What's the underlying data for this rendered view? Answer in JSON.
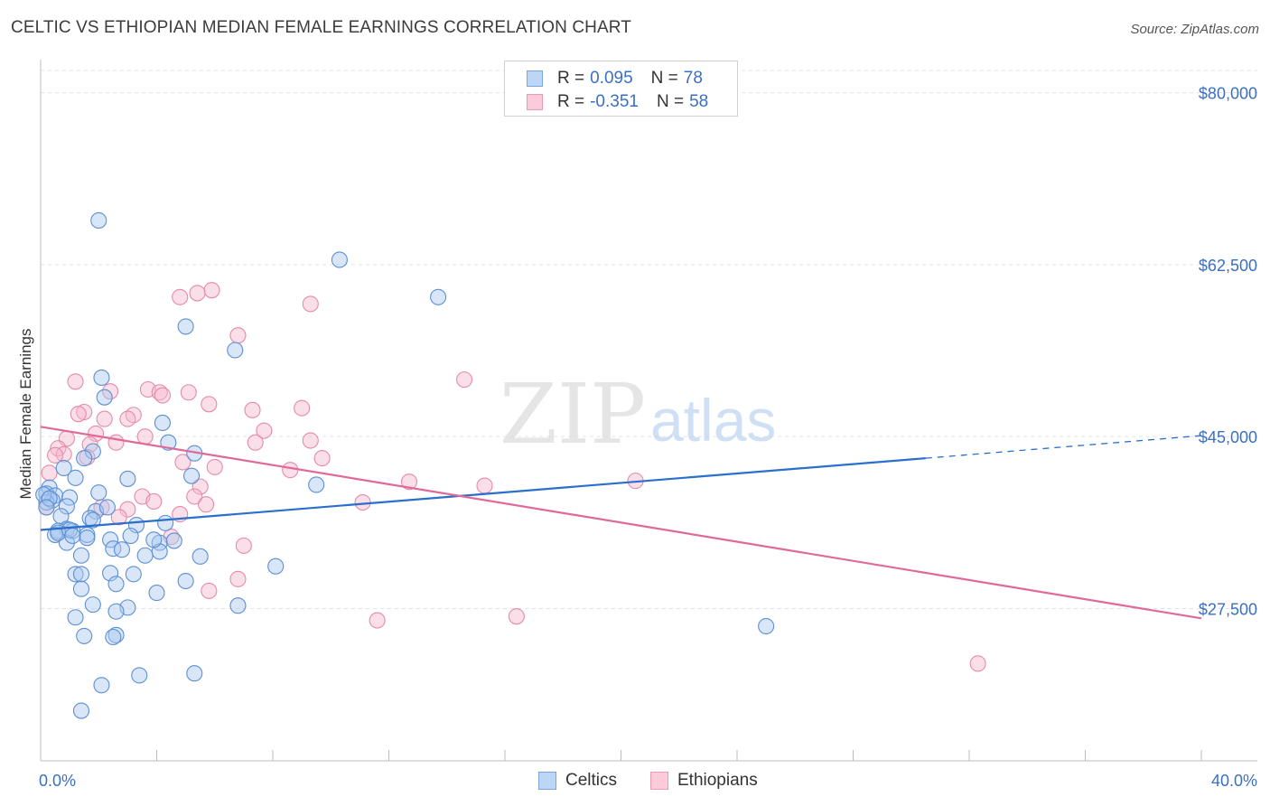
{
  "title": "CELTIC VS ETHIOPIAN MEDIAN FEMALE EARNINGS CORRELATION CHART",
  "source": "Source: ZipAtlas.com",
  "watermark": {
    "zip": "ZIP",
    "atlas": "atlas"
  },
  "colors": {
    "celtics_fill": "#a9c8f0",
    "celtics_stroke": "#5b8fd4",
    "celtics_line": "#2a6fcc",
    "ethiopians_fill": "#f6b8cc",
    "ethiopians_stroke": "#e58aa9",
    "ethiopians_line": "#e0699a",
    "axis_text": "#3a6fc4",
    "grid": "#e3e3e3"
  },
  "legend": {
    "celtics": {
      "r_label": "R =",
      "r_value": "0.095",
      "n_label": "N =",
      "n_value": "78"
    },
    "ethiopians": {
      "r_label": "R =",
      "r_value": "-0.351",
      "n_label": "N =",
      "n_value": "58"
    }
  },
  "chart_data": {
    "type": "scatter",
    "title": "CELTIC VS ETHIOPIAN MEDIAN FEMALE EARNINGS CORRELATION CHART",
    "xlabel": "",
    "ylabel": "Median Female Earnings",
    "xlim": [
      0,
      40
    ],
    "ylim": [
      12000,
      83000
    ],
    "x_tick_labels": [
      "0.0%",
      "40.0%"
    ],
    "y_ticks": [
      27500,
      45000,
      62500,
      80000
    ],
    "y_tick_labels": [
      "$27,500",
      "$45,000",
      "$62,500",
      "$80,000"
    ],
    "legend_entries": [
      "Celtics",
      "Ethiopians"
    ],
    "series": [
      {
        "name": "Celtics",
        "trend": {
          "x0": 0,
          "y0": 35500,
          "x1": 30.5,
          "y1": 42800,
          "dash_x1": 40,
          "dash_y1": 45100
        },
        "points": [
          [
            2.0,
            67000
          ],
          [
            10.3,
            63000
          ],
          [
            13.7,
            59200
          ],
          [
            5.0,
            56200
          ],
          [
            6.7,
            53800
          ],
          [
            2.1,
            51000
          ],
          [
            2.2,
            49000
          ],
          [
            4.2,
            46400
          ],
          [
            4.4,
            44400
          ],
          [
            1.8,
            43500
          ],
          [
            5.3,
            43300
          ],
          [
            1.5,
            42800
          ],
          [
            0.8,
            41800
          ],
          [
            1.2,
            40800
          ],
          [
            3.0,
            40700
          ],
          [
            5.2,
            41000
          ],
          [
            9.5,
            40100
          ],
          [
            0.3,
            39800
          ],
          [
            0.2,
            39200
          ],
          [
            2.0,
            39300
          ],
          [
            0.5,
            39000
          ],
          [
            1.0,
            38800
          ],
          [
            0.4,
            38500
          ],
          [
            0.2,
            38300
          ],
          [
            0.9,
            37900
          ],
          [
            1.9,
            37400
          ],
          [
            0.7,
            36900
          ],
          [
            1.7,
            36700
          ],
          [
            1.8,
            36500
          ],
          [
            3.3,
            36000
          ],
          [
            4.3,
            36200
          ],
          [
            0.9,
            35600
          ],
          [
            0.6,
            35400
          ],
          [
            1.1,
            35400
          ],
          [
            0.5,
            35000
          ],
          [
            1.6,
            35000
          ],
          [
            2.4,
            34500
          ],
          [
            3.1,
            34900
          ],
          [
            1.6,
            34700
          ],
          [
            4.1,
            34200
          ],
          [
            4.6,
            34400
          ],
          [
            0.9,
            34200
          ],
          [
            2.5,
            33600
          ],
          [
            2.8,
            33500
          ],
          [
            4.1,
            33300
          ],
          [
            3.6,
            32900
          ],
          [
            5.5,
            32800
          ],
          [
            1.4,
            32900
          ],
          [
            1.2,
            31000
          ],
          [
            1.4,
            31000
          ],
          [
            2.4,
            31100
          ],
          [
            3.2,
            31000
          ],
          [
            8.1,
            31800
          ],
          [
            2.6,
            30000
          ],
          [
            5.0,
            30300
          ],
          [
            1.4,
            29500
          ],
          [
            4.0,
            29100
          ],
          [
            1.8,
            27900
          ],
          [
            6.8,
            27800
          ],
          [
            3.0,
            27600
          ],
          [
            2.6,
            27200
          ],
          [
            1.2,
            26600
          ],
          [
            25.0,
            25700
          ],
          [
            1.5,
            24700
          ],
          [
            2.6,
            24800
          ],
          [
            2.5,
            24600
          ],
          [
            3.4,
            20700
          ],
          [
            5.3,
            20900
          ],
          [
            2.1,
            19700
          ],
          [
            1.4,
            17100
          ],
          [
            0.1,
            39100
          ],
          [
            0.3,
            38700
          ],
          [
            0.6,
            35200
          ],
          [
            1.0,
            35500
          ],
          [
            2.3,
            37800
          ],
          [
            1.1,
            34900
          ],
          [
            3.9,
            34500
          ],
          [
            0.2,
            37800
          ]
        ]
      },
      {
        "name": "Ethiopians",
        "trend": {
          "x0": 0,
          "y0": 46000,
          "x1": 40,
          "y1": 26500
        },
        "points": [
          [
            5.9,
            59900
          ],
          [
            5.4,
            59600
          ],
          [
            4.8,
            59200
          ],
          [
            9.3,
            58500
          ],
          [
            6.8,
            55300
          ],
          [
            14.6,
            50800
          ],
          [
            1.2,
            50600
          ],
          [
            2.4,
            49600
          ],
          [
            3.7,
            49800
          ],
          [
            4.1,
            49500
          ],
          [
            5.1,
            49500
          ],
          [
            4.2,
            49200
          ],
          [
            5.8,
            48300
          ],
          [
            9.0,
            47900
          ],
          [
            7.3,
            47700
          ],
          [
            1.5,
            47500
          ],
          [
            1.3,
            47300
          ],
          [
            3.2,
            47200
          ],
          [
            2.2,
            46800
          ],
          [
            3.0,
            46800
          ],
          [
            7.7,
            45600
          ],
          [
            1.9,
            45300
          ],
          [
            3.6,
            45000
          ],
          [
            0.9,
            44800
          ],
          [
            2.6,
            44400
          ],
          [
            1.7,
            44200
          ],
          [
            9.3,
            44600
          ],
          [
            7.4,
            44400
          ],
          [
            0.6,
            43800
          ],
          [
            0.8,
            43200
          ],
          [
            9.7,
            42800
          ],
          [
            1.6,
            42900
          ],
          [
            4.9,
            42400
          ],
          [
            6.0,
            41900
          ],
          [
            8.6,
            41600
          ],
          [
            0.3,
            41300
          ],
          [
            12.7,
            40400
          ],
          [
            15.3,
            40000
          ],
          [
            20.5,
            40500
          ],
          [
            5.5,
            39900
          ],
          [
            3.5,
            38900
          ],
          [
            5.3,
            38900
          ],
          [
            3.9,
            38400
          ],
          [
            11.1,
            38300
          ],
          [
            5.7,
            38100
          ],
          [
            2.1,
            37800
          ],
          [
            3.0,
            37600
          ],
          [
            4.8,
            37100
          ],
          [
            2.7,
            36800
          ],
          [
            4.5,
            34800
          ],
          [
            7.0,
            33900
          ],
          [
            6.8,
            30500
          ],
          [
            5.8,
            29300
          ],
          [
            11.6,
            26300
          ],
          [
            16.4,
            26700
          ],
          [
            32.3,
            21900
          ],
          [
            0.2,
            37800
          ],
          [
            0.5,
            43100
          ]
        ]
      }
    ]
  }
}
